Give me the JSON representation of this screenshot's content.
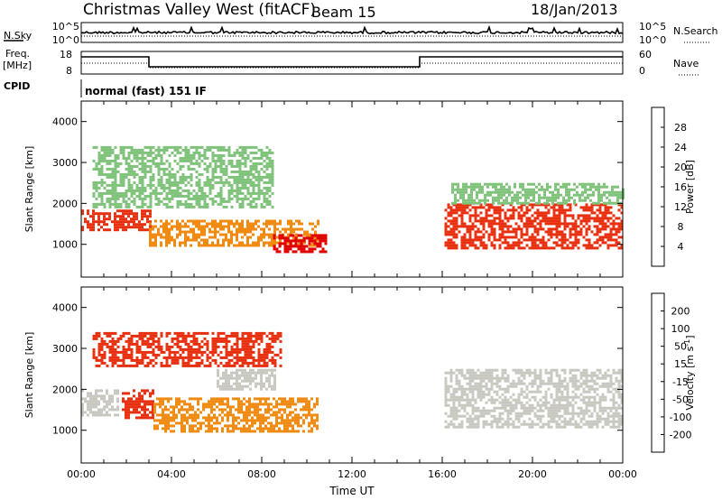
{
  "header": {
    "title": "Christmas Valley West (fitACF)",
    "beam": "Beam 15",
    "date": "18/Jan/2013"
  },
  "top_panels": {
    "nsky_label": "N.Sky",
    "nsky_ticks": [
      "10^5",
      "10^0"
    ],
    "nsearch_label": "N.Search",
    "nsearch_ticks": [
      "10^5",
      "10^0"
    ],
    "freq_label_1": "Freq.",
    "freq_label_2": "[MHz]",
    "freq_ticks": [
      "18",
      "8"
    ],
    "nave_label": "Nave",
    "nave_ticks": [
      "60",
      "0"
    ],
    "cpid_label": "CPID",
    "cpid_text": "normal (fast) 151 IF"
  },
  "chart_data": [
    {
      "type": "heatmap",
      "name": "power",
      "ylabel": "Slant Range [km]",
      "xlabel": "Time UT",
      "xlim": [
        0,
        24
      ],
      "ylim": [
        200,
        4500
      ],
      "yticks": [
        "1000",
        "2000",
        "3000",
        "4000"
      ],
      "colorbar": {
        "label": "Power [dB]",
        "ticks": [
          "4",
          "8",
          "12",
          "16",
          "20",
          "24",
          "28"
        ],
        "colors": [
          "#1a1ad6",
          "#2a5fb8",
          "#3c8a60",
          "#7fc27a",
          "#f0c020",
          "#f08a10",
          "#e83010",
          "#e00000"
        ]
      },
      "regions": [
        {
          "t0": 0.0,
          "t1": 3.1,
          "r0": 1350,
          "r1": 1850,
          "value": 26
        },
        {
          "t0": 3.0,
          "t1": 10.5,
          "r0": 1000,
          "r1": 1600,
          "value": 22
        },
        {
          "t0": 8.5,
          "t1": 10.8,
          "r0": 850,
          "r1": 1250,
          "value": 28
        },
        {
          "t0": 0.5,
          "t1": 8.5,
          "r0": 1900,
          "r1": 3400,
          "value": 12
        },
        {
          "t0": 16.1,
          "t1": 24.0,
          "r0": 900,
          "r1": 2000,
          "value": 27
        },
        {
          "t0": 16.4,
          "t1": 24.0,
          "r0": 2000,
          "r1": 2500,
          "value": 15
        }
      ]
    },
    {
      "type": "heatmap",
      "name": "velocity",
      "ylabel": "Slant Range [km]",
      "xlabel": "Time UT",
      "xlim": [
        0,
        24
      ],
      "ylim": [
        200,
        4500
      ],
      "xticks": [
        "00:00",
        "04:00",
        "08:00",
        "12:00",
        "16:00",
        "20:00",
        "00:00"
      ],
      "yticks": [
        "1000",
        "2000",
        "3000",
        "4000"
      ],
      "colorbar": {
        "label": "Velocity [m s",
        "label_sup": "-1",
        "label_end": "]",
        "ticks": [
          "200",
          "100",
          "50",
          "15",
          "-15",
          "-50",
          "-100",
          "-200"
        ],
        "colors": [
          "#2828c0",
          "#3a6ad0",
          "#2e8a3c",
          "#62c24a",
          "#c8c8c0",
          "#f0b040",
          "#f08a10",
          "#e83010",
          "#e00000"
        ]
      },
      "regions": [
        {
          "t0": 0.0,
          "t1": 1.6,
          "r0": 1400,
          "r1": 2000,
          "value": 0
        },
        {
          "t0": 1.8,
          "t1": 3.2,
          "r0": 1300,
          "r1": 2000,
          "value": -180
        },
        {
          "t0": 3.2,
          "t1": 10.5,
          "r0": 1000,
          "r1": 1800,
          "value": -80
        },
        {
          "t0": 0.5,
          "t1": 8.8,
          "r0": 2600,
          "r1": 3400,
          "value": -200
        },
        {
          "t0": 6.0,
          "t1": 8.6,
          "r0": 2000,
          "r1": 2500,
          "value": 0
        },
        {
          "t0": 16.1,
          "t1": 24.0,
          "r0": 1100,
          "r1": 2500,
          "value": 0
        }
      ]
    }
  ]
}
